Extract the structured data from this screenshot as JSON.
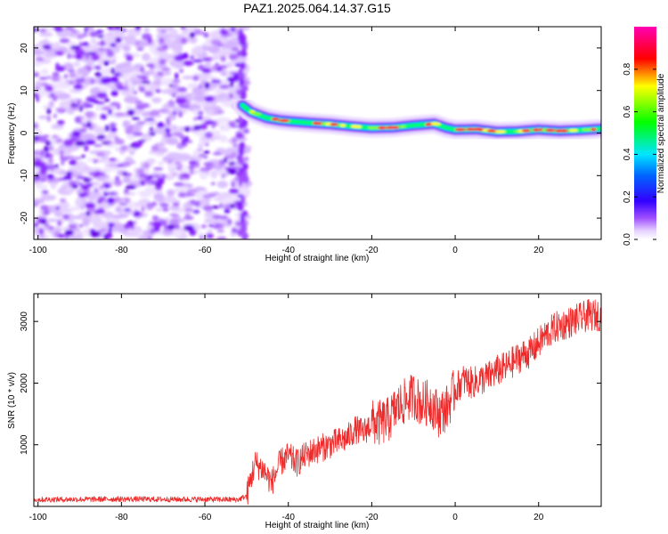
{
  "title": "PAZ1.2025.064.14.37.G15",
  "chart_data": [
    {
      "type": "heatmap",
      "xlabel": "Height of straight line (km)",
      "ylabel": "Frequency (Hz)",
      "xlim": [
        -101,
        35
      ],
      "ylim": [
        -25,
        25
      ],
      "x_ticks": [
        -100,
        -80,
        -60,
        -40,
        -20,
        0,
        20
      ],
      "y_ticks": [
        -20,
        -10,
        0,
        10,
        20
      ],
      "colorbar": {
        "label": "Normalized spectral amplitude",
        "range": [
          0,
          1
        ],
        "ticks": [
          0.0,
          0.2,
          0.4,
          0.6,
          0.8
        ],
        "tick_labels": [
          "0.0",
          "0.2",
          "0.4",
          "0.6",
          "0.8"
        ],
        "colormap": [
          "#ffffff",
          "#e6d2ff",
          "#8c28ff",
          "#0000ff",
          "#00e6ff",
          "#00ff00",
          "#ffff00",
          "#ff0000",
          "#ff00b4"
        ]
      },
      "noise_region_x": [
        -101,
        -50
      ],
      "signal_trace": {
        "x": [
          -51,
          -49,
          -47,
          -45,
          -42,
          -40,
          -35,
          -30,
          -25,
          -20,
          -15,
          -10,
          -5,
          -2,
          0,
          5,
          10,
          15,
          20,
          25,
          30,
          35
        ],
        "freq": [
          6.5,
          5.0,
          4.2,
          3.5,
          3.0,
          2.8,
          2.4,
          2.1,
          1.6,
          1.2,
          1.3,
          1.8,
          2.2,
          1.2,
          0.8,
          0.9,
          0.3,
          0.4,
          0.8,
          0.5,
          0.7,
          1.0
        ]
      },
      "grid": false
    },
    {
      "type": "line",
      "xlabel": "Height of straight line (km)",
      "ylabel": "SNR (10 * v/v)",
      "xlim": [
        -101,
        35
      ],
      "ylim": [
        0,
        3450
      ],
      "x_ticks": [
        -100,
        -80,
        -60,
        -40,
        -20,
        0,
        20
      ],
      "y_ticks": [
        1000,
        2000,
        3000
      ],
      "series": [
        {
          "color": "#ee2a2a",
          "x": [
            -101,
            -90,
            -80,
            -70,
            -60,
            -52,
            -50,
            -48,
            -46,
            -44,
            -42,
            -40,
            -38,
            -36,
            -34,
            -30,
            -26,
            -24,
            -22,
            -20,
            -18,
            -16,
            -14,
            -12,
            -10,
            -8,
            -6,
            -4,
            -2,
            0,
            2,
            4,
            6,
            8,
            10,
            12,
            14,
            16,
            18,
            20,
            22,
            24,
            26,
            28,
            30,
            32,
            35
          ],
          "values": [
            110,
            115,
            120,
            115,
            115,
            110,
            170,
            700,
            600,
            380,
            700,
            820,
            700,
            820,
            900,
            1000,
            1100,
            1250,
            1200,
            1350,
            1350,
            1400,
            1600,
            1700,
            1800,
            1650,
            1700,
            1500,
            1600,
            1900,
            2050,
            2000,
            2050,
            2100,
            2200,
            2250,
            2350,
            2450,
            2500,
            2650,
            2800,
            2900,
            2950,
            3000,
            3050,
            3100,
            3100
          ]
        }
      ],
      "grid": false
    }
  ]
}
